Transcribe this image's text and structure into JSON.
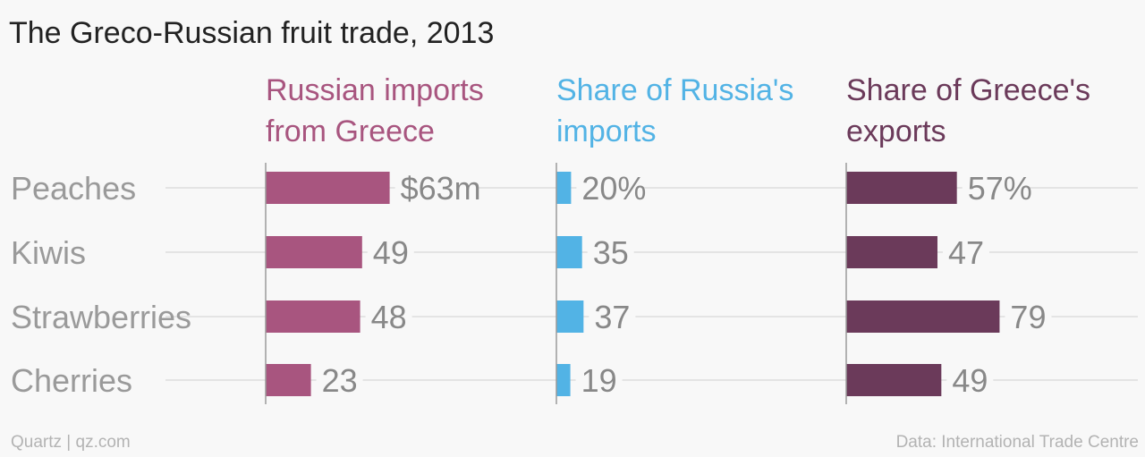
{
  "title": "The Greco-Russian fruit trade, 2013",
  "source_left": "Quartz | qz.com",
  "source_right": "Data: International Trade Centre",
  "chart_data": {
    "type": "bar",
    "orientation": "horizontal",
    "title": "The Greco-Russian fruit trade, 2013",
    "categories": [
      "Peaches",
      "Kiwis",
      "Strawberries",
      "Cherries"
    ],
    "gridlines": true,
    "panels": [
      {
        "title_lines": [
          "Russian imports",
          "from Greece"
        ],
        "color": "#a8557f",
        "values": [
          63,
          49,
          48,
          23
        ],
        "labels": [
          "$63m",
          "49",
          "48",
          "23"
        ],
        "xlim": [
          0,
          80
        ]
      },
      {
        "title_lines": [
          "Share of Russia's",
          "imports"
        ],
        "color": "#52b3e5",
        "values": [
          20,
          35,
          37,
          19
        ],
        "labels": [
          "20%",
          "35",
          "37",
          "19"
        ],
        "xlim": [
          0,
          100
        ]
      },
      {
        "title_lines": [
          "Share of Greece's",
          "exports"
        ],
        "color": "#6b3a5a",
        "values": [
          57,
          47,
          79,
          49
        ],
        "labels": [
          "57%",
          "47",
          "79",
          "49"
        ],
        "xlim": [
          0,
          100
        ]
      }
    ]
  }
}
